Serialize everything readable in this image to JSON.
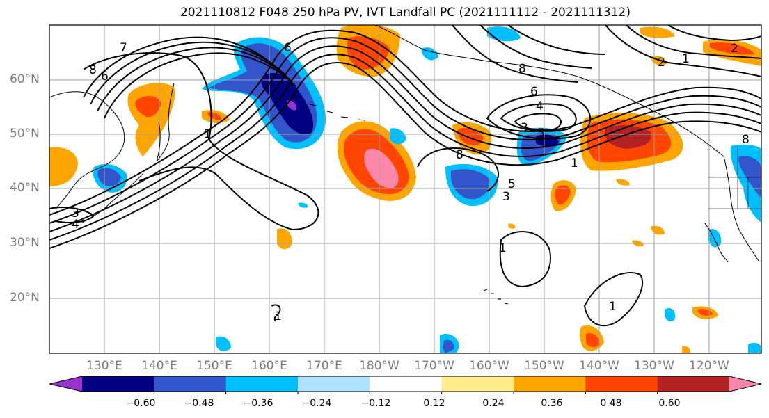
{
  "title": "2021110812 F048 250 hPa PV, IVT Landfall PC (2021111112 - 2021111312)",
  "latitude_labels": [
    "60°N",
    "50°N",
    "40°N",
    "30°N",
    "20°N"
  ],
  "longitude_labels": [
    "130°E",
    "140°E",
    "150°E",
    "160°E",
    "170°E",
    "180°W",
    "170°W",
    "160°W",
    "150°W",
    "140°W",
    "130°W",
    "120°W"
  ],
  "contour_labels": [
    "8",
    "7",
    "6",
    "1",
    "4",
    "3",
    "6",
    "8",
    "6",
    "4",
    "3",
    "5",
    "8",
    "1",
    "5",
    "3",
    "2",
    "1",
    "2",
    "1",
    "1",
    "1",
    "8"
  ],
  "colorbar": {
    "tick_labels": [
      "−0.60",
      "−0.48",
      "−0.36",
      "−0.24",
      "−0.12",
      "0.12",
      "0.24",
      "0.36",
      "0.48",
      "0.60"
    ],
    "colors": [
      "#9933cc",
      "#000080",
      "#3355cc",
      "#00bfff",
      "#b0e2ff",
      "#ffffff",
      "#ffec8b",
      "#ffa500",
      "#ff4500",
      "#b22222",
      "#ff88aa"
    ]
  }
}
